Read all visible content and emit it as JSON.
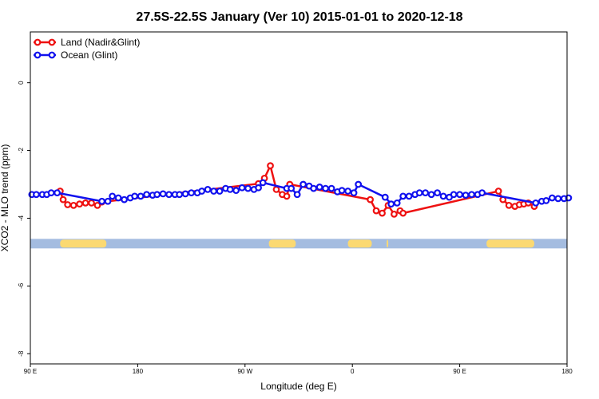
{
  "chart_data": {
    "type": "line",
    "title": "27.5S-22.5S January (Ver 10)   2015-01-01 to 2020-12-18",
    "xlabel": "Longitude (deg E)",
    "ylabel": "XCO2 - MLO trend (ppm)",
    "xlim": [
      90,
      450
    ],
    "ylim": [
      -8.3,
      1.5
    ],
    "x_ticks": [
      {
        "value": 90,
        "label": "90 E"
      },
      {
        "value": 162,
        "label": "180"
      },
      {
        "value": 234,
        "label": "90 W"
      },
      {
        "value": 306,
        "label": "0"
      },
      {
        "value": 378,
        "label": "90 E"
      },
      {
        "value": 450,
        "label": "180"
      }
    ],
    "y_ticks": [
      0,
      -2,
      -4,
      -6,
      -8
    ],
    "legend_position": "top-left",
    "land_mask": {
      "y": -4.75,
      "ocean_color": "#a4bce0",
      "land_color": "#fbd972",
      "land_ranges": [
        [
          110,
          141
        ],
        [
          250,
          268
        ],
        [
          303,
          319
        ],
        [
          329,
          330
        ],
        [
          396,
          428
        ]
      ]
    },
    "series": [
      {
        "name": "Land (Nadir&Glint)",
        "color": "#ee1111",
        "points": [
          [
            110,
            -3.2
          ],
          [
            112,
            -3.45
          ],
          [
            115,
            -3.6
          ],
          [
            119,
            -3.62
          ],
          [
            123,
            -3.58
          ],
          [
            127,
            -3.55
          ],
          [
            131,
            -3.55
          ],
          [
            135,
            -3.62
          ],
          [
            138,
            -3.52
          ],
          [
            243,
            -2.98
          ],
          [
            247,
            -2.82
          ],
          [
            251,
            -2.45
          ],
          [
            255,
            -3.15
          ],
          [
            259,
            -3.3
          ],
          [
            262,
            -3.35
          ],
          [
            264,
            -3.0
          ],
          [
            318,
            -3.45
          ],
          [
            322,
            -3.78
          ],
          [
            326,
            -3.85
          ],
          [
            330,
            -3.62
          ],
          [
            334,
            -3.88
          ],
          [
            338,
            -3.78
          ],
          [
            340,
            -3.85
          ],
          [
            404,
            -3.2
          ],
          [
            407,
            -3.45
          ],
          [
            411,
            -3.62
          ],
          [
            415,
            -3.65
          ],
          [
            418,
            -3.6
          ],
          [
            421,
            -3.58
          ],
          [
            424,
            -3.55
          ],
          [
            428,
            -3.65
          ]
        ]
      },
      {
        "name": "Ocean (Glint)",
        "color": "#1111ee",
        "points": [
          [
            91,
            -3.3
          ],
          [
            94,
            -3.3
          ],
          [
            98,
            -3.3
          ],
          [
            101,
            -3.3
          ],
          [
            104,
            -3.25
          ],
          [
            108,
            -3.25
          ],
          [
            138,
            -3.5
          ],
          [
            142,
            -3.5
          ],
          [
            145,
            -3.35
          ],
          [
            149,
            -3.4
          ],
          [
            153,
            -3.45
          ],
          [
            157,
            -3.4
          ],
          [
            160,
            -3.35
          ],
          [
            164,
            -3.35
          ],
          [
            168,
            -3.3
          ],
          [
            172,
            -3.32
          ],
          [
            175,
            -3.3
          ],
          [
            179,
            -3.28
          ],
          [
            183,
            -3.3
          ],
          [
            187,
            -3.3
          ],
          [
            190,
            -3.3
          ],
          [
            194,
            -3.28
          ],
          [
            198,
            -3.25
          ],
          [
            202,
            -3.25
          ],
          [
            205,
            -3.2
          ],
          [
            209,
            -3.15
          ],
          [
            213,
            -3.2
          ],
          [
            217,
            -3.2
          ],
          [
            221,
            -3.12
          ],
          [
            224,
            -3.15
          ],
          [
            228,
            -3.18
          ],
          [
            232,
            -3.1
          ],
          [
            236,
            -3.12
          ],
          [
            240,
            -3.15
          ],
          [
            243,
            -3.1
          ],
          [
            246,
            -2.95
          ],
          [
            262,
            -3.12
          ],
          [
            265,
            -3.12
          ],
          [
            269,
            -3.3
          ],
          [
            273,
            -3.0
          ],
          [
            277,
            -3.05
          ],
          [
            280,
            -3.12
          ],
          [
            284,
            -3.08
          ],
          [
            288,
            -3.12
          ],
          [
            292,
            -3.12
          ],
          [
            296,
            -3.22
          ],
          [
            299,
            -3.18
          ],
          [
            303,
            -3.2
          ],
          [
            307,
            -3.25
          ],
          [
            310,
            -3.0
          ],
          [
            328,
            -3.38
          ],
          [
            332,
            -3.58
          ],
          [
            336,
            -3.55
          ],
          [
            340,
            -3.35
          ],
          [
            344,
            -3.35
          ],
          [
            348,
            -3.3
          ],
          [
            351,
            -3.25
          ],
          [
            355,
            -3.25
          ],
          [
            359,
            -3.3
          ],
          [
            363,
            -3.25
          ],
          [
            367,
            -3.35
          ],
          [
            371,
            -3.38
          ],
          [
            374,
            -3.3
          ],
          [
            378,
            -3.3
          ],
          [
            382,
            -3.32
          ],
          [
            386,
            -3.3
          ],
          [
            390,
            -3.3
          ],
          [
            393,
            -3.25
          ],
          [
            429,
            -3.55
          ],
          [
            433,
            -3.5
          ],
          [
            436,
            -3.48
          ],
          [
            440,
            -3.4
          ],
          [
            444,
            -3.42
          ],
          [
            448,
            -3.42
          ],
          [
            451,
            -3.4
          ]
        ]
      }
    ]
  }
}
